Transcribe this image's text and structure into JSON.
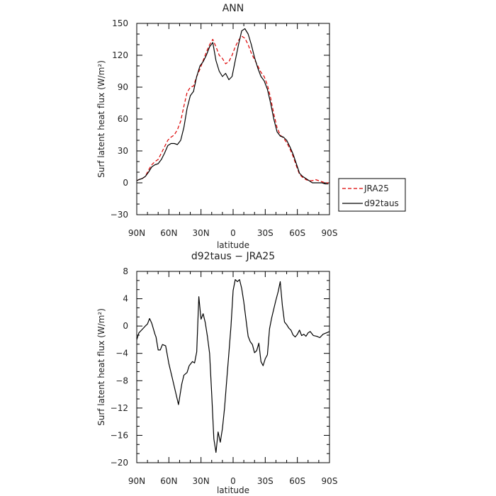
{
  "chart_data": [
    {
      "type": "line",
      "title": "ANN",
      "xlabel": "latitude",
      "ylabel": "Surf latent heat flux (W/m²)",
      "ylim": [
        -30,
        150
      ],
      "yticks": [
        -30,
        0,
        30,
        60,
        90,
        120,
        150
      ],
      "ytick_labels": [
        "−30",
        "0",
        "30",
        "60",
        "90",
        "120",
        "150"
      ],
      "xlim": [
        90,
        -90
      ],
      "xticks": [
        90,
        60,
        30,
        0,
        -30,
        -60,
        -90
      ],
      "xtick_labels": [
        "90N",
        "60N",
        "30N",
        "0",
        "30S",
        "60S",
        "90S"
      ],
      "grid": false,
      "legend": "right",
      "series": [
        {
          "name": "JRA25",
          "color": "#dd0000",
          "dash": "dashed",
          "x": [
            90,
            88,
            85,
            82,
            79,
            76,
            73,
            70,
            67,
            64,
            61,
            58,
            55,
            52,
            49,
            46,
            43,
            40,
            37,
            34,
            31,
            28,
            25,
            22,
            19,
            16,
            13,
            10,
            7,
            4,
            1,
            -2,
            -5,
            -8,
            -11,
            -14,
            -17,
            -20,
            -23,
            -26,
            -29,
            -32,
            -35,
            -38,
            -41,
            -44,
            -47,
            -50,
            -53,
            -56,
            -59,
            -62,
            -65,
            -68,
            -71,
            -74,
            -77,
            -80,
            -83,
            -86,
            -89
          ],
          "y": [
            2,
            3,
            4,
            6,
            12,
            17,
            20,
            22,
            28,
            34,
            40,
            43,
            45,
            50,
            58,
            72,
            85,
            90,
            91,
            100,
            107,
            115,
            123,
            130,
            135,
            128,
            120,
            117,
            112,
            114,
            120,
            128,
            134,
            138,
            136,
            130,
            122,
            116,
            110,
            104,
            100,
            92,
            80,
            65,
            52,
            45,
            42,
            38,
            32,
            25,
            16,
            8,
            5,
            3,
            2,
            2,
            3,
            2,
            1,
            0,
            0
          ]
        },
        {
          "name": "d92taus",
          "color": "#000000",
          "dash": "solid",
          "x": [
            90,
            88,
            85,
            82,
            79,
            76,
            73,
            70,
            67,
            64,
            61,
            58,
            55,
            52,
            49,
            46,
            43,
            40,
            37,
            34,
            31,
            28,
            25,
            22,
            19,
            16,
            13,
            10,
            7,
            4,
            1,
            -2,
            -5,
            -8,
            -11,
            -14,
            -17,
            -20,
            -23,
            -26,
            -29,
            -32,
            -35,
            -38,
            -41,
            -44,
            -47,
            -50,
            -53,
            -56,
            -59,
            -62,
            -65,
            -68,
            -71,
            -74,
            -77,
            -80,
            -83,
            -86,
            -89
          ],
          "y": [
            2,
            3,
            4,
            6,
            10,
            15,
            17,
            18,
            22,
            28,
            35,
            37,
            37,
            36,
            40,
            52,
            70,
            82,
            86,
            100,
            110,
            114,
            120,
            128,
            132,
            115,
            105,
            100,
            103,
            97,
            100,
            115,
            130,
            143,
            145,
            140,
            130,
            118,
            108,
            100,
            96,
            88,
            75,
            60,
            48,
            44,
            43,
            40,
            34,
            27,
            18,
            9,
            6,
            4,
            2,
            0,
            0,
            0,
            0,
            -1,
            -1
          ]
        }
      ]
    },
    {
      "type": "line",
      "title": "d92taus − JRA25",
      "xlabel": "latitude",
      "ylabel": "Surf latent heat flux (W/m²)",
      "ylim": [
        -20,
        8
      ],
      "yticks": [
        -20,
        -16,
        -12,
        -8,
        -4,
        0,
        4,
        8
      ],
      "ytick_labels": [
        "−20",
        "−16",
        "−12",
        "−8",
        "−4",
        "0",
        "4",
        "8"
      ],
      "xlim": [
        90,
        -90
      ],
      "xticks": [
        90,
        60,
        30,
        0,
        -30,
        -60,
        -90
      ],
      "xtick_labels": [
        "90N",
        "60N",
        "30N",
        "0",
        "30S",
        "60S",
        "90S"
      ],
      "grid": false,
      "series": [
        {
          "color": "#000000",
          "dash": "solid",
          "x": [
            90,
            88,
            85,
            82,
            80,
            78,
            76,
            73,
            72,
            70,
            68,
            66,
            63,
            60,
            57,
            54,
            51,
            48,
            46,
            43,
            41,
            38,
            36,
            34,
            32,
            30,
            28,
            26,
            24,
            22,
            20,
            18,
            16,
            14,
            12,
            10,
            8,
            6,
            4,
            2,
            0,
            -2,
            -4,
            -6,
            -8,
            -10,
            -12,
            -14,
            -16,
            -18,
            -20,
            -22,
            -24,
            -26,
            -28,
            -30,
            -32,
            -34,
            -36,
            -38,
            -40,
            -42,
            -44,
            -46,
            -48,
            -50,
            -52,
            -54,
            -56,
            -58,
            -60,
            -62,
            -64,
            -66,
            -68,
            -70,
            -72,
            -75,
            -78,
            -81,
            -84,
            -87,
            -90
          ],
          "y": [
            -2,
            -1,
            -0.5,
            0,
            0.3,
            1.1,
            0.4,
            -1.2,
            -1.6,
            -3.5,
            -3.5,
            -2.7,
            -2.9,
            -5.5,
            -7.5,
            -9.5,
            -11.5,
            -8.5,
            -7.2,
            -6.8,
            -5.8,
            -5.2,
            -5.4,
            -3.8,
            4.3,
            1.0,
            1.8,
            0.5,
            -1.5,
            -4,
            -10,
            -16.5,
            -18.5,
            -15.5,
            -17,
            -15,
            -12,
            -8,
            -4,
            0,
            5.2,
            6.8,
            6.5,
            6.8,
            5.5,
            3.5,
            1,
            -1.5,
            -2.3,
            -2.7,
            -3.9,
            -3.6,
            -2.5,
            -5.2,
            -5.8,
            -4.8,
            -4.2,
            -0.4,
            1.2,
            2.5,
            3.8,
            5,
            6.5,
            3,
            0.6,
            0.2,
            -0.3,
            -0.6,
            -1.3,
            -1.6,
            -1.2,
            -0.6,
            -1.4,
            -1.2,
            -1.5,
            -1.0,
            -0.8,
            -1.4,
            -1.5,
            -1.7,
            -1.2,
            -1.0,
            -0.8
          ]
        }
      ]
    }
  ]
}
